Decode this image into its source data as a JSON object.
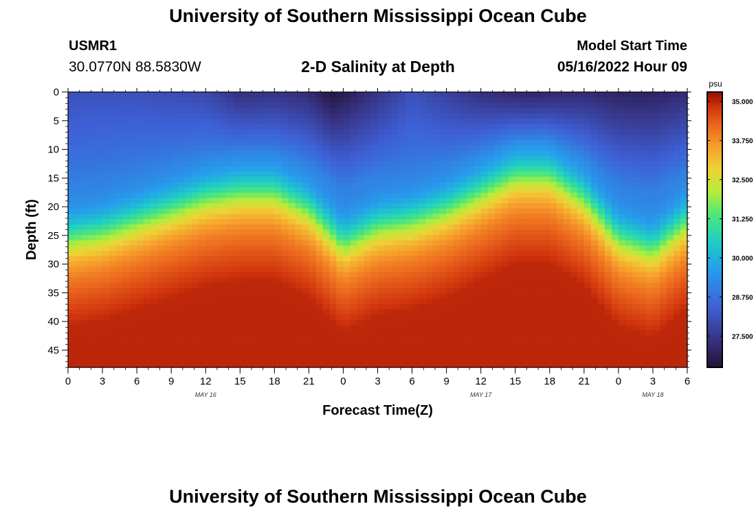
{
  "header": {
    "title": "University of Southern Mississippi Ocean Cube",
    "station_id": "USMR1",
    "coords": "30.0770N  88.5830W",
    "subtitle": "2-D Salinity at Depth",
    "model_start_label": "Model Start Time",
    "model_start_value": "05/16/2022 Hour 09"
  },
  "footer": {
    "title": "University of Southern Mississippi Ocean Cube"
  },
  "chart_data": {
    "type": "heatmap",
    "title": "2-D Salinity at Depth",
    "xlabel": "Forecast Time(Z)",
    "ylabel": "Depth (ft)",
    "x_range_hours": [
      0,
      54
    ],
    "x_tick_labels": [
      "0",
      "3",
      "6",
      "9",
      "12",
      "15",
      "18",
      "21",
      "0",
      "3",
      "6",
      "9",
      "12",
      "15",
      "18",
      "21",
      "0",
      "3",
      "6"
    ],
    "date_labels": [
      {
        "hour": 12,
        "label": "MAY 16"
      },
      {
        "hour": 36,
        "label": "MAY 17"
      },
      {
        "hour": 51,
        "label": "MAY 18"
      }
    ],
    "ylim": [
      0,
      48
    ],
    "y_ticks": [
      0,
      5,
      10,
      15,
      20,
      25,
      30,
      35,
      40,
      45
    ],
    "colorbar": {
      "unit": "psu",
      "min": 26.5,
      "max": 35.3,
      "ticks": [
        35.0,
        33.75,
        32.5,
        31.25,
        30.0,
        28.75,
        27.5
      ],
      "tick_labels": [
        "35.000",
        "33.750",
        "32.500",
        "31.250",
        "30.000",
        "28.750",
        "27.500"
      ]
    },
    "halocline_depth_ft": {
      "hours": [
        0,
        3,
        6,
        9,
        12,
        15,
        18,
        21,
        24,
        27,
        30,
        33,
        36,
        39,
        42,
        45,
        48,
        51,
        54
      ],
      "depth": [
        25,
        24,
        22,
        20,
        18,
        17,
        17,
        20,
        26,
        23,
        22,
        20,
        17,
        14,
        14,
        18,
        25,
        27,
        22
      ]
    },
    "surface_min_psu": {
      "hours": [
        0,
        6,
        12,
        15,
        18,
        21,
        23,
        24,
        27,
        30,
        36,
        40,
        45,
        48,
        51,
        54
      ],
      "psu": [
        28.1,
        28.1,
        27.9,
        27.3,
        27.4,
        27.2,
        26.6,
        26.8,
        27.4,
        28.1,
        27.3,
        27.0,
        27.2,
        27.0,
        27.0,
        27.2
      ]
    },
    "deep_max_psu": 35.0
  }
}
